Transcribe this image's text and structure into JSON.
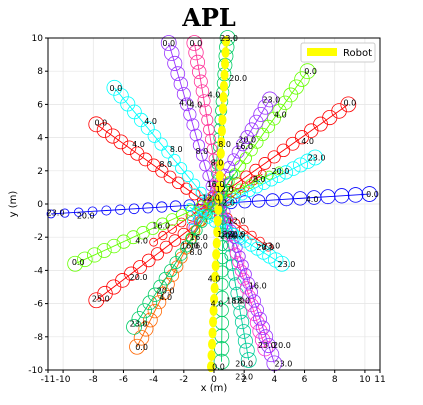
{
  "chart_data": {
    "type": "scatter",
    "title": "APL",
    "xlabel": "x (m)",
    "ylabel": "y (m)",
    "xlim": [
      -11,
      11
    ],
    "ylim": [
      -10,
      10
    ],
    "x_ticks": [
      -11,
      -10,
      -8,
      -6,
      -4,
      -2,
      0,
      2,
      4,
      6,
      8,
      10,
      11
    ],
    "y_ticks": [
      -10,
      -8,
      -6,
      -4,
      -2,
      0,
      2,
      4,
      6,
      8,
      10
    ],
    "grid": true,
    "legend": {
      "position": "top-right",
      "entries": [
        {
          "label": "Robot",
          "color": "#ffff00"
        }
      ]
    },
    "robot": {
      "name": "Robot",
      "color": "#ffff00",
      "start": [
        0.8,
        9.8
      ],
      "end": [
        -0.2,
        -9.8
      ],
      "count": 30
    },
    "series": [
      {
        "color": "#0000ff",
        "start": [
          10.3,
          0.6
        ],
        "end": [
          -10.8,
          -0.6
        ],
        "count": 24,
        "labels": [
          {
            "t": "0.0",
            "x": 10.5,
            "y": 0.6
          },
          {
            "t": "4.0",
            "x": 6.5,
            "y": 0.3
          },
          {
            "t": "20.0",
            "x": -8.5,
            "y": -0.7
          },
          {
            "t": "23.0",
            "x": -10.5,
            "y": -0.5
          }
        ]
      },
      {
        "color": "#ff0000",
        "start": [
          8.9,
          6.0
        ],
        "end": [
          -4.0,
          -2.3
        ],
        "count": 22,
        "labels": [
          {
            "t": "0.0",
            "x": 9.0,
            "y": 6.1
          },
          {
            "t": "4.0",
            "x": 6.2,
            "y": 3.8
          },
          {
            "t": "20.0",
            "x": 4.4,
            "y": 2.0
          },
          {
            "t": "8.0",
            "x": 3.0,
            "y": 1.5
          }
        ]
      },
      {
        "color": "#ff0000",
        "start": [
          -7.8,
          4.8
        ],
        "end": [
          3.6,
          -2.6
        ],
        "count": 22,
        "labels": [
          {
            "t": "0.0",
            "x": -7.5,
            "y": 4.9
          },
          {
            "t": "4.0",
            "x": -5.0,
            "y": 3.6
          },
          {
            "t": "8.0",
            "x": -3.2,
            "y": 2.4
          },
          {
            "t": "20.0",
            "x": 1.5,
            "y": -1.8
          },
          {
            "t": "23.0",
            "x": 3.8,
            "y": -2.5
          }
        ]
      },
      {
        "color": "#ff0000",
        "start": [
          -7.8,
          -5.8
        ],
        "end": [
          3.2,
          1.8
        ],
        "count": 20,
        "labels": [
          {
            "t": "25.0",
            "x": -7.5,
            "y": -5.7
          },
          {
            "t": "20.0",
            "x": -5.0,
            "y": -4.4
          },
          {
            "t": "16.0",
            "x": -1.0,
            "y": -2.5
          },
          {
            "t": "12.0",
            "x": -0.2,
            "y": 0.4
          }
        ]
      },
      {
        "color": "#00ffff",
        "start": [
          -6.6,
          7.0
        ],
        "end": [
          1.8,
          -2.2
        ],
        "count": 20,
        "labels": [
          {
            "t": "0.0",
            "x": -6.5,
            "y": 7.0
          },
          {
            "t": "4.0",
            "x": -4.2,
            "y": 5.0
          },
          {
            "t": "8.0",
            "x": -2.5,
            "y": 3.3
          },
          {
            "t": "12.0",
            "x": 0.8,
            "y": 0.1
          }
        ]
      },
      {
        "color": "#9933ff",
        "start": [
          -3.0,
          9.7
        ],
        "end": [
          0.8,
          -2.0
        ],
        "count": 20,
        "labels": [
          {
            "t": "0.0",
            "x": -3.0,
            "y": 9.7
          },
          {
            "t": "4.0",
            "x": -1.9,
            "y": 6.1
          },
          {
            "t": "8.0",
            "x": -0.8,
            "y": 3.2
          },
          {
            "t": "16.0",
            "x": 0.1,
            "y": 1.2
          }
        ]
      },
      {
        "color": "#66ff00",
        "start": [
          6.2,
          8.0
        ],
        "end": [
          -1.6,
          -2.0
        ],
        "count": 22,
        "labels": [
          {
            "t": "0.0",
            "x": 6.4,
            "y": 8.0
          },
          {
            "t": "4.0",
            "x": 4.4,
            "y": 5.4
          },
          {
            "t": "20.0",
            "x": 2.2,
            "y": 3.9
          },
          {
            "t": "8.0",
            "x": 0.2,
            "y": 2.5
          },
          {
            "t": "16.0",
            "x": -1.0,
            "y": -2.0
          }
        ]
      },
      {
        "color": "#9933ff",
        "start": [
          3.7,
          6.3
        ],
        "end": [
          -1.4,
          -1.4
        ],
        "count": 18,
        "labels": [
          {
            "t": "23.0",
            "x": 3.8,
            "y": 6.3
          },
          {
            "t": "16.0",
            "x": 2.0,
            "y": 3.5
          },
          {
            "t": "12.0",
            "x": 0.7,
            "y": 0.9
          }
        ]
      },
      {
        "color": "#00ffff",
        "start": [
          6.7,
          2.8
        ],
        "end": [
          -1.5,
          -1.0
        ],
        "count": 18,
        "labels": [
          {
            "t": "23.0",
            "x": 6.8,
            "y": 2.8
          },
          {
            "t": "16.0",
            "x": 1.4,
            "y": -1.9
          },
          {
            "t": "12.0",
            "x": 0.8,
            "y": -1.8
          }
        ]
      },
      {
        "color": "#66ff00",
        "start": [
          -9.2,
          -3.6
        ],
        "end": [
          4.3,
          2.0
        ],
        "count": 22,
        "labels": [
          {
            "t": "0.0",
            "x": -9.0,
            "y": -3.5
          },
          {
            "t": "4.0",
            "x": -4.8,
            "y": -2.2
          },
          {
            "t": "16.0",
            "x": -3.5,
            "y": -1.3
          },
          {
            "t": "20.0",
            "x": 1.0,
            "y": -1.9
          }
        ]
      },
      {
        "color": "#ff6600",
        "start": [
          -5.1,
          -8.6
        ],
        "end": [
          0.5,
          1.6
        ],
        "count": 20,
        "labels": [
          {
            "t": "0.0",
            "x": -4.8,
            "y": -8.6
          },
          {
            "t": "4.0",
            "x": -3.2,
            "y": -5.6
          },
          {
            "t": "8.0",
            "x": -1.2,
            "y": -2.9
          }
        ]
      },
      {
        "color": "#00cc66",
        "start": [
          -5.3,
          -7.4
        ],
        "end": [
          1.3,
          1.8
        ],
        "count": 20,
        "labels": [
          {
            "t": "23.0",
            "x": -5.0,
            "y": -7.2
          },
          {
            "t": "20.0",
            "x": -3.2,
            "y": -5.2
          },
          {
            "t": "16.0",
            "x": -1.6,
            "y": -2.5
          }
        ]
      },
      {
        "color": "#00cc99",
        "start": [
          2.3,
          -9.4
        ],
        "end": [
          0.2,
          1.5
        ],
        "count": 20,
        "labels": [
          {
            "t": "20.0",
            "x": 2.0,
            "y": -9.6
          },
          {
            "t": "23.0",
            "x": 2.0,
            "y": -10.4
          },
          {
            "t": "18.0",
            "x": 1.8,
            "y": -5.8
          },
          {
            "t": "4.0",
            "x": 0.2,
            "y": -6.0
          }
        ]
      },
      {
        "color": "#ff33cc",
        "start": [
          3.4,
          -8.7
        ],
        "end": [
          0.0,
          1.2
        ],
        "count": 20,
        "labels": [
          {
            "t": "23.0",
            "x": 3.5,
            "y": -8.5
          },
          {
            "t": "16.0",
            "x": 2.9,
            "y": -4.9
          },
          {
            "t": "18.0",
            "x": 1.4,
            "y": -5.8
          }
        ]
      },
      {
        "color": "#9933ff",
        "start": [
          4.0,
          -9.6
        ],
        "end": [
          0.4,
          0.6
        ],
        "count": 20,
        "labels": [
          {
            "t": "20.0",
            "x": 4.5,
            "y": -8.5
          },
          {
            "t": "23.0",
            "x": 4.6,
            "y": -9.6
          },
          {
            "t": "12.0",
            "x": 1.5,
            "y": -1.0
          }
        ]
      },
      {
        "color": "#00ffff",
        "start": [
          4.5,
          -3.6
        ],
        "end": [
          -1.6,
          -0.2
        ],
        "count": 16,
        "labels": [
          {
            "t": "23.0",
            "x": 4.8,
            "y": -3.6
          },
          {
            "t": "20.0",
            "x": 3.4,
            "y": -2.6
          }
        ]
      },
      {
        "color": "#00cc66",
        "start": [
          0.9,
          10.0
        ],
        "end": [
          0.1,
          1.8
        ],
        "count": 16,
        "labels": [
          {
            "t": "23.0",
            "x": 1.0,
            "y": 10.0
          },
          {
            "t": "20.0",
            "x": 1.6,
            "y": 7.6
          },
          {
            "t": "4.0",
            "x": 0.0,
            "y": 6.6
          },
          {
            "t": "8.0",
            "x": 0.7,
            "y": 3.6
          }
        ]
      },
      {
        "color": "#ff3399",
        "start": [
          -1.3,
          9.7
        ],
        "end": [
          0.3,
          1.0
        ],
        "count": 16,
        "labels": [
          {
            "t": "0.0",
            "x": -1.2,
            "y": 9.7
          },
          {
            "t": "4.0",
            "x": -1.2,
            "y": 6.0
          }
        ]
      },
      {
        "color": "#00cc66",
        "start": [
          0.5,
          -9.5
        ],
        "end": [
          0.6,
          0.6
        ],
        "count": 14,
        "labels": [
          {
            "t": "0.0",
            "x": 0.3,
            "y": -9.8
          },
          {
            "t": "4.0",
            "x": 0.0,
            "y": -4.5
          }
        ]
      }
    ]
  }
}
